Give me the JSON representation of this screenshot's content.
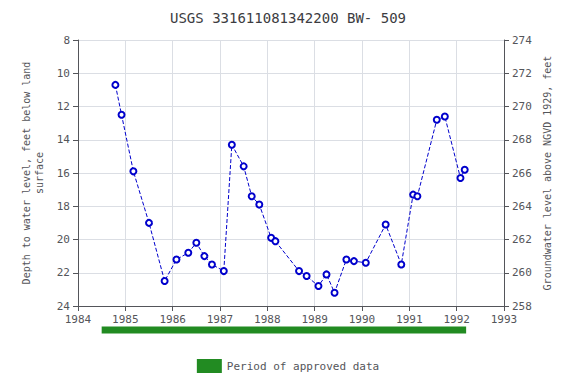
{
  "chart_data": {
    "type": "line",
    "title": "USGS 331611081342200 BW- 509",
    "ylabel": "Depth to water level, feet below land\nsurface",
    "y2label": "Groundwater level above NGVD 1929, feet",
    "x": [
      1984.79,
      1984.92,
      1985.17,
      1985.5,
      1985.83,
      1986.08,
      1986.33,
      1986.5,
      1986.67,
      1986.83,
      1987.08,
      1987.25,
      1987.5,
      1987.67,
      1987.83,
      1988.08,
      1988.17,
      1988.67,
      1988.83,
      1989.08,
      1989.25,
      1989.42,
      1989.67,
      1989.83,
      1990.08,
      1990.5,
      1990.83,
      1991.08,
      1991.17,
      1991.58,
      1991.75,
      1992.08,
      1992.17
    ],
    "series": [
      {
        "color": "#0000cc",
        "line_style": "dashed",
        "marker": "circle",
        "values": [
          10.7,
          12.5,
          15.9,
          19.0,
          22.5,
          21.2,
          20.8,
          20.2,
          21.0,
          21.5,
          21.9,
          14.3,
          15.6,
          17.4,
          17.9,
          19.9,
          20.1,
          21.9,
          22.2,
          22.8,
          22.1,
          23.2,
          21.2,
          21.3,
          21.4,
          19.1,
          21.5,
          17.3,
          17.4,
          12.8,
          12.6,
          16.3,
          15.8
        ]
      }
    ],
    "xlim": [
      1984,
      1993
    ],
    "xticks": [
      1984,
      1985,
      1986,
      1987,
      1988,
      1989,
      1990,
      1991,
      1992,
      1993
    ],
    "ylim": [
      24,
      8
    ],
    "yticks": [
      8,
      10,
      12,
      14,
      16,
      18,
      20,
      22,
      24
    ],
    "y2lim": [
      258,
      274
    ],
    "y2ticks": [
      274,
      272,
      270,
      268,
      266,
      264,
      262,
      260,
      258
    ],
    "period": {
      "label": "Period of approved data",
      "start": 1984.5,
      "end": 1992.2,
      "color": "#228B22"
    },
    "grid": true,
    "legend": "bottom"
  }
}
